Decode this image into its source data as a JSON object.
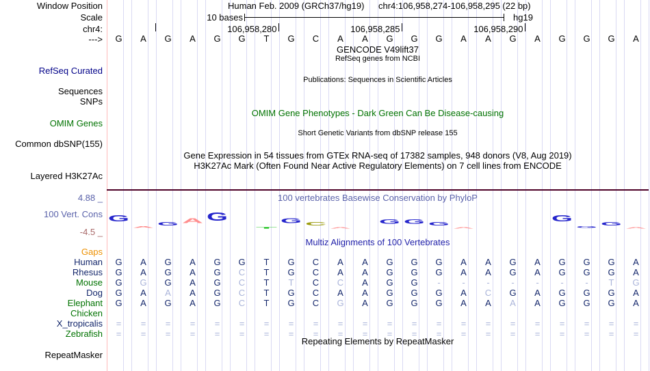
{
  "header": {
    "window_position_label": "Window Position",
    "assembly_title": "Human Feb. 2009 (GRCh37/hg19)",
    "position_title": "chr4:106,958,274-106,958,295 (22 bp)",
    "scale_label": "Scale",
    "scale_value": "10 bases",
    "assembly_short": "hg19",
    "chrom_label": "chr4:",
    "strand_arrow": "--->"
  },
  "ruler": {
    "ticks": [
      {
        "col": 2,
        "label": ""
      },
      {
        "col": 7,
        "label": "106,958,280"
      },
      {
        "col": 12,
        "label": "106,958,285"
      },
      {
        "col": 17,
        "label": "106,958,290"
      }
    ]
  },
  "sequence": "GAGAGGTGCAAGGGAAGAGGGA",
  "tracks": {
    "gencode": {
      "title": "GENCODE V49lift37",
      "subtitle": "RefSeq genes from NCBI"
    },
    "refseq_curated": {
      "label": "RefSeq Curated"
    },
    "publications": {
      "title": "Publications: Sequences in Scientific Articles",
      "label_sequences": "Sequences",
      "label_snps": "SNPs"
    },
    "omim": {
      "title": "OMIM Gene Phenotypes - Dark Green Can Be Disease-causing",
      "label": "OMIM Genes"
    },
    "dbsnp": {
      "title": "Short Genetic Variants from dbSNP release 155",
      "label": "Common dbSNP(155)"
    },
    "gtex": {
      "title": "Gene Expression in 54 tissues from GTEx RNA-seq of 17382 samples, 948 donors (V8, Aug 2019)"
    },
    "h3k27ac": {
      "title": "H3K27Ac Mark (Often Found Near Active Regulatory Elements) on 7 cell lines from ENCODE",
      "label": "Layered H3K27Ac"
    },
    "conservation": {
      "title": "100 vertebrates Basewise Conservation by PhyloP",
      "label": "100 Vert. Cons",
      "max_label": "4.88 _",
      "min_label": "-4.5 _",
      "logo_colors": {
        "G": "#2525cc",
        "A": "#ff8d8d",
        "T": "#00bb00",
        "C": "#9c9c10"
      },
      "logo": [
        {
          "col": 1,
          "base": "G",
          "h": 13
        },
        {
          "col": 2,
          "base": "A",
          "h": 4
        },
        {
          "col": 3,
          "base": "G",
          "h": 7
        },
        {
          "col": 4,
          "base": "A",
          "h": 10
        },
        {
          "col": 5,
          "base": "G",
          "h": 18
        },
        {
          "col": 7,
          "base": "T",
          "h": 3
        },
        {
          "col": 8,
          "base": "G",
          "h": 10
        },
        {
          "col": 9,
          "base": "C",
          "h": 7
        },
        {
          "col": 10,
          "base": "A",
          "h": 3
        },
        {
          "col": 12,
          "base": "G",
          "h": 9
        },
        {
          "col": 13,
          "base": "G",
          "h": 9
        },
        {
          "col": 14,
          "base": "G",
          "h": 7
        },
        {
          "col": 15,
          "base": "A",
          "h": 3
        },
        {
          "col": 19,
          "base": "G",
          "h": 13
        },
        {
          "col": 20,
          "base": "G",
          "h": 4
        },
        {
          "col": 21,
          "base": "G",
          "h": 7
        },
        {
          "col": 22,
          "base": "A",
          "h": 3
        }
      ]
    },
    "multiz": {
      "title": "Multiz Alignments of 100 Vertebrates",
      "gaps_label": "Gaps",
      "note": "lowercase = shown muted/mismatch, - = deletion, = = unalignable",
      "rows": [
        {
          "species": "Human",
          "color": "navy",
          "bases": "GAGAGGTGCAAGGGAAGAGGGA"
        },
        {
          "species": "Rhesus",
          "color": "navy",
          "bases": "GAGAGcTGCAAGGGAAGAGGGA"
        },
        {
          "species": "Mouse",
          "color": "green",
          "bases": "GgGAGcTtCcAGG-------tg"
        },
        {
          "species": "Dog",
          "color": "navy",
          "bases": "GAaAGcTGCAAGGGAcGAGGGA"
        },
        {
          "species": "Elephant",
          "color": "green",
          "bases": "GAGAGcTGCgAGGGAAaAGGGA"
        },
        {
          "species": "Chicken",
          "color": "green",
          "bases": ""
        },
        {
          "species": "X_tropicalis",
          "color": "navy",
          "bases": "======================"
        },
        {
          "species": "Zebrafish",
          "color": "green",
          "bases": "======================"
        }
      ]
    },
    "repeatmasker": {
      "title": "Repeating Elements by RepeatMasker",
      "label": "RepeatMasker"
    }
  },
  "colors": {
    "grid_line": "#d9d9f3",
    "left_guide": "#ffb9b9",
    "h3k27ac_baseline": "#4d0026",
    "navy_label": "#13266b",
    "green_label": "#007200",
    "refseq_blue": "#000088",
    "multiz_title_blue": "#2222aa",
    "phylop_slate": "#5a62aa",
    "min_label_rust": "#a86868",
    "gaps_orange": "#ee9000",
    "muted_base": "#a9b3d9",
    "dark_base": "#13266b"
  }
}
